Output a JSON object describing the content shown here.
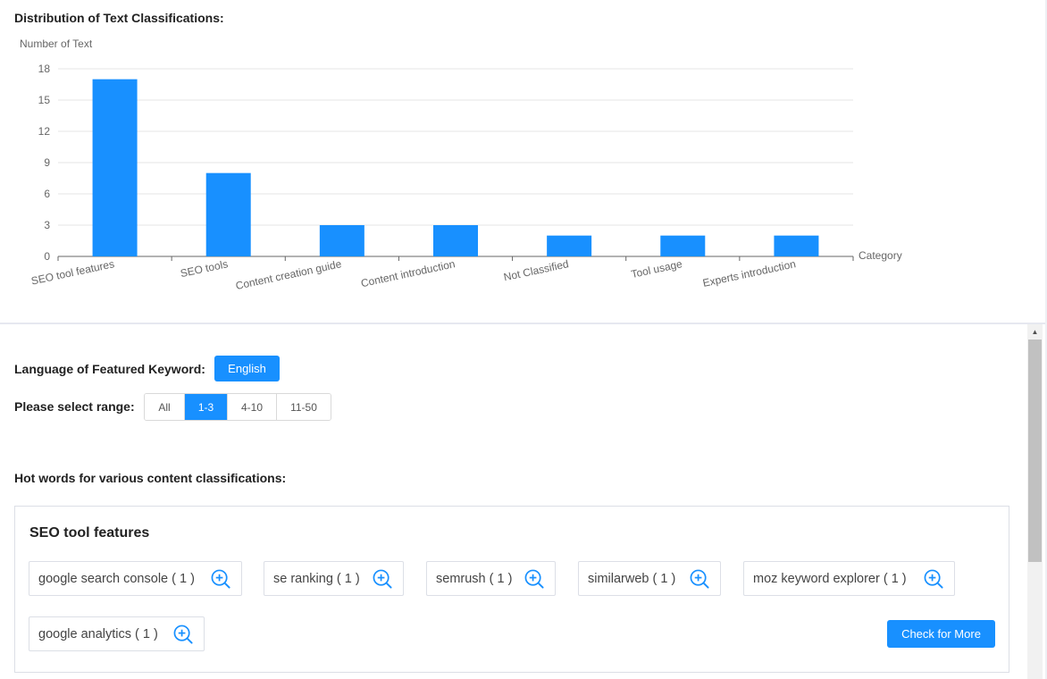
{
  "chart_section": {
    "heading": "Distribution of Text Classifications:"
  },
  "chart_data": {
    "type": "bar",
    "title": "",
    "ylabel": "Number of Text",
    "xlabel": "Category",
    "categories": [
      "SEO tool features",
      "SEO tools",
      "Content creation guide",
      "Content introduction",
      "Not Classified",
      "Tool usage",
      "Experts introduction"
    ],
    "values": [
      17,
      8,
      3,
      3,
      2,
      2,
      2
    ],
    "ylim": [
      0,
      18
    ],
    "yticks": [
      0,
      3,
      6,
      9,
      12,
      15,
      18
    ],
    "grid": true,
    "color": "#1890ff"
  },
  "filters": {
    "language_label": "Language of Featured Keyword:",
    "language_button": "English",
    "range_label": "Please select range:",
    "range_options": [
      "All",
      "1-3",
      "4-10",
      "11-50"
    ],
    "range_selected": "1-3"
  },
  "hot_words": {
    "heading": "Hot words for various content classifications:",
    "card": {
      "title": "SEO tool features",
      "tags": [
        "google search console ( 1 )",
        "se ranking ( 1 )",
        "semrush ( 1 )",
        "similarweb ( 1 )",
        "moz keyword explorer ( 1 )",
        "google analytics ( 1 )"
      ],
      "tag_icon": "zoom-in-icon",
      "more_button": "Check for More"
    }
  },
  "colors": {
    "accent": "#1890ff",
    "border": "#dcdfe6",
    "grid": "#e6e6e6"
  }
}
